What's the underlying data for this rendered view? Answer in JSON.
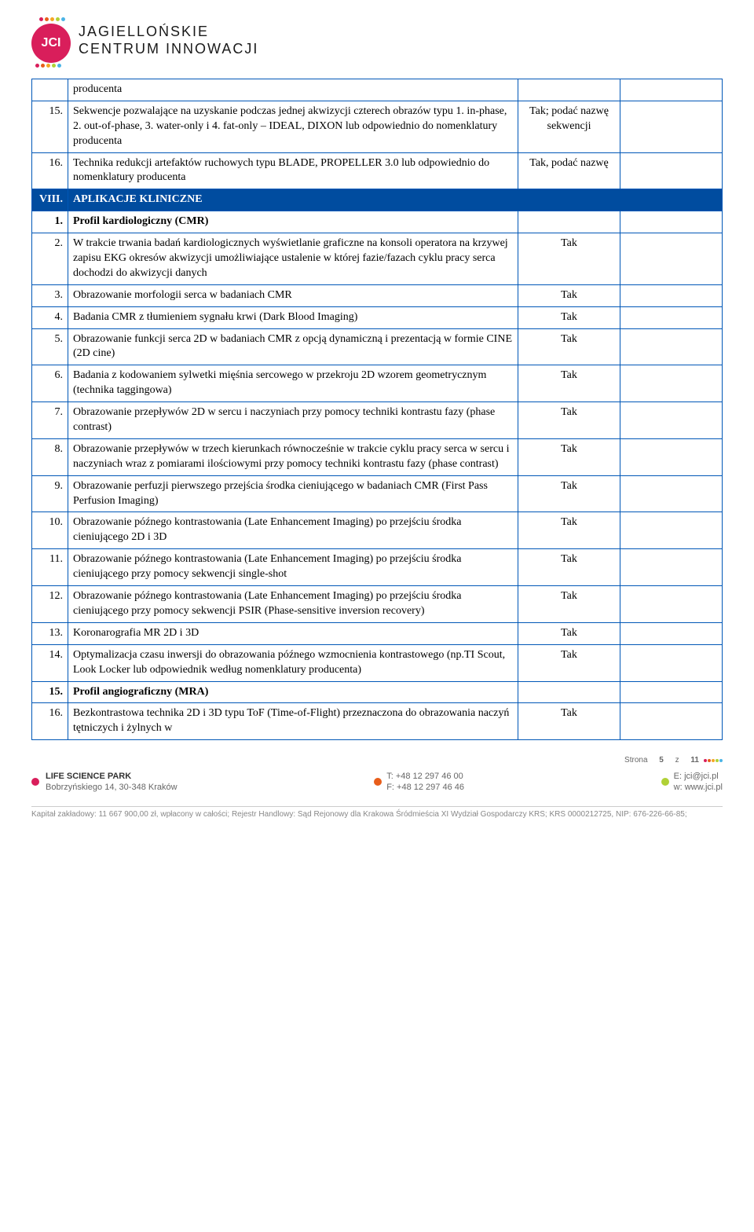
{
  "logo": {
    "abbrev": "JCI",
    "line1": "JAGIELLOŃSKIE",
    "line2": "CENTRUM INNOWACJI",
    "dot_colors": [
      "#d91e5b",
      "#e85d1a",
      "#f5a623",
      "#b0d136",
      "#4ab4e6"
    ]
  },
  "rows": [
    {
      "num": "",
      "desc": "producenta",
      "req": "",
      "noborder_top": true
    },
    {
      "num": "15.",
      "desc": "Sekwencje pozwalające na uzyskanie podczas jednej akwizycji czterech obrazów typu 1. in-phase, 2. out-of-phase, 3. water-only i 4. fat-only – IDEAL, DIXON lub odpowiednio do nomenklatury producenta",
      "req": "Tak; podać nazwę sekwencji"
    },
    {
      "num": "16.",
      "desc": "Technika redukcji artefaktów ruchowych typu BLADE, PROPELLER 3.0 lub odpowiednio do nomenklatury producenta",
      "req": "Tak, podać nazwę"
    },
    {
      "section": true,
      "num": "VIII.",
      "desc": "APLIKACJE KLINICZNE"
    },
    {
      "num": "1.",
      "desc": "Profil kardiologiczny (CMR)",
      "req": "",
      "bold": true
    },
    {
      "num": "2.",
      "desc": "W trakcie trwania badań kardiologicznych wyświetlanie graficzne na konsoli operatora na krzywej zapisu EKG okresów akwizycji umożliwiające ustalenie w której fazie/fazach cyklu pracy serca dochodzi do akwizycji danych",
      "req": "Tak"
    },
    {
      "num": "3.",
      "desc": "Obrazowanie morfologii serca w badaniach CMR",
      "req": "Tak"
    },
    {
      "num": "4.",
      "desc": "Badania CMR z tłumieniem sygnału krwi (Dark Blood Imaging)",
      "req": "Tak"
    },
    {
      "num": "5.",
      "desc": "Obrazowanie funkcji serca 2D w badaniach CMR z opcją dynamiczną i prezentacją w formie CINE (2D cine)",
      "req": "Tak"
    },
    {
      "num": "6.",
      "desc": "Badania z kodowaniem sylwetki mięśnia sercowego w przekroju 2D wzorem geometrycznym (technika taggingowa)",
      "req": "Tak"
    },
    {
      "num": "7.",
      "desc": "Obrazowanie przepływów 2D w sercu i naczyniach przy pomocy techniki kontrastu fazy (phase contrast)",
      "req": "Tak"
    },
    {
      "num": "8.",
      "desc": "Obrazowanie przepływów w trzech kierunkach równocześnie w trakcie cyklu pracy serca w sercu i naczyniach wraz z pomiarami ilościowymi przy pomocy techniki kontrastu fazy (phase contrast)",
      "req": "Tak"
    },
    {
      "num": "9.",
      "desc": "Obrazowanie perfuzji pierwszego przejścia środka cieniującego w badaniach CMR (First Pass Perfusion Imaging)",
      "req": "Tak"
    },
    {
      "num": "10.",
      "desc": "Obrazowanie późnego kontrastowania (Late Enhancement Imaging) po przejściu środka cieniującego 2D i 3D",
      "req": "Tak"
    },
    {
      "num": "11.",
      "desc": "Obrazowanie późnego kontrastowania (Late Enhancement Imaging) po przejściu środka cieniującego przy pomocy sekwencji single-shot",
      "req": "Tak"
    },
    {
      "num": "12.",
      "desc": "Obrazowanie późnego kontrastowania (Late Enhancement Imaging) po przejściu środka cieniującego przy pomocy sekwencji PSIR (Phase-sensitive inversion recovery)",
      "req": "Tak"
    },
    {
      "num": "13.",
      "desc": "Koronarografia MR 2D i 3D",
      "req": "Tak"
    },
    {
      "num": "14.",
      "desc": "Optymalizacja czasu inwersji do obrazowania późnego wzmocnienia kontrastowego (np.TI Scout, Look Locker lub odpowiednik według nomenklatury producenta)",
      "req": "Tak"
    },
    {
      "num": "15.",
      "desc": "Profil angiograficzny (MRA)",
      "req": "",
      "bold": true
    },
    {
      "num": "16.",
      "desc": "Bezkontrastowa technika 2D i 3D typu ToF (Time-of-Flight) przeznaczona do obrazowania naczyń tętniczych i żylnych w",
      "req": "Tak"
    }
  ],
  "footer": {
    "park_name": "LIFE SCIENCE PARK",
    "address": "Bobrzyńskiego 14, 30-348 Kraków",
    "tel_label": "T:",
    "tel": "+48 12 297 46 00",
    "fax_label": "F:",
    "fax": "+48 12 297 46 46",
    "email_label": "E:",
    "email": "jci@jci.pl",
    "web_label": "w:",
    "web": "www.jci.pl",
    "page_label": "Strona",
    "page_current": "5",
    "page_of": "z",
    "page_total": "11",
    "legal": "Kapitał zakładowy: 11 667 900,00 zł, wpłacony w całości; Rejestr Handlowy: Sąd Rejonowy dla Krakowa Śródmieścia XI Wydział Gospodarczy KRS; KRS 0000212725, NIP: 676-226-66-85;",
    "icon_colors": {
      "loc": "#d91e5b",
      "phone": "#e85d1a",
      "mail": "#b0d136",
      "web": "#4ab4e6"
    }
  },
  "colors": {
    "table_border": "#0057b7",
    "section_bg": "#004c9f",
    "section_text": "#ffffff"
  }
}
